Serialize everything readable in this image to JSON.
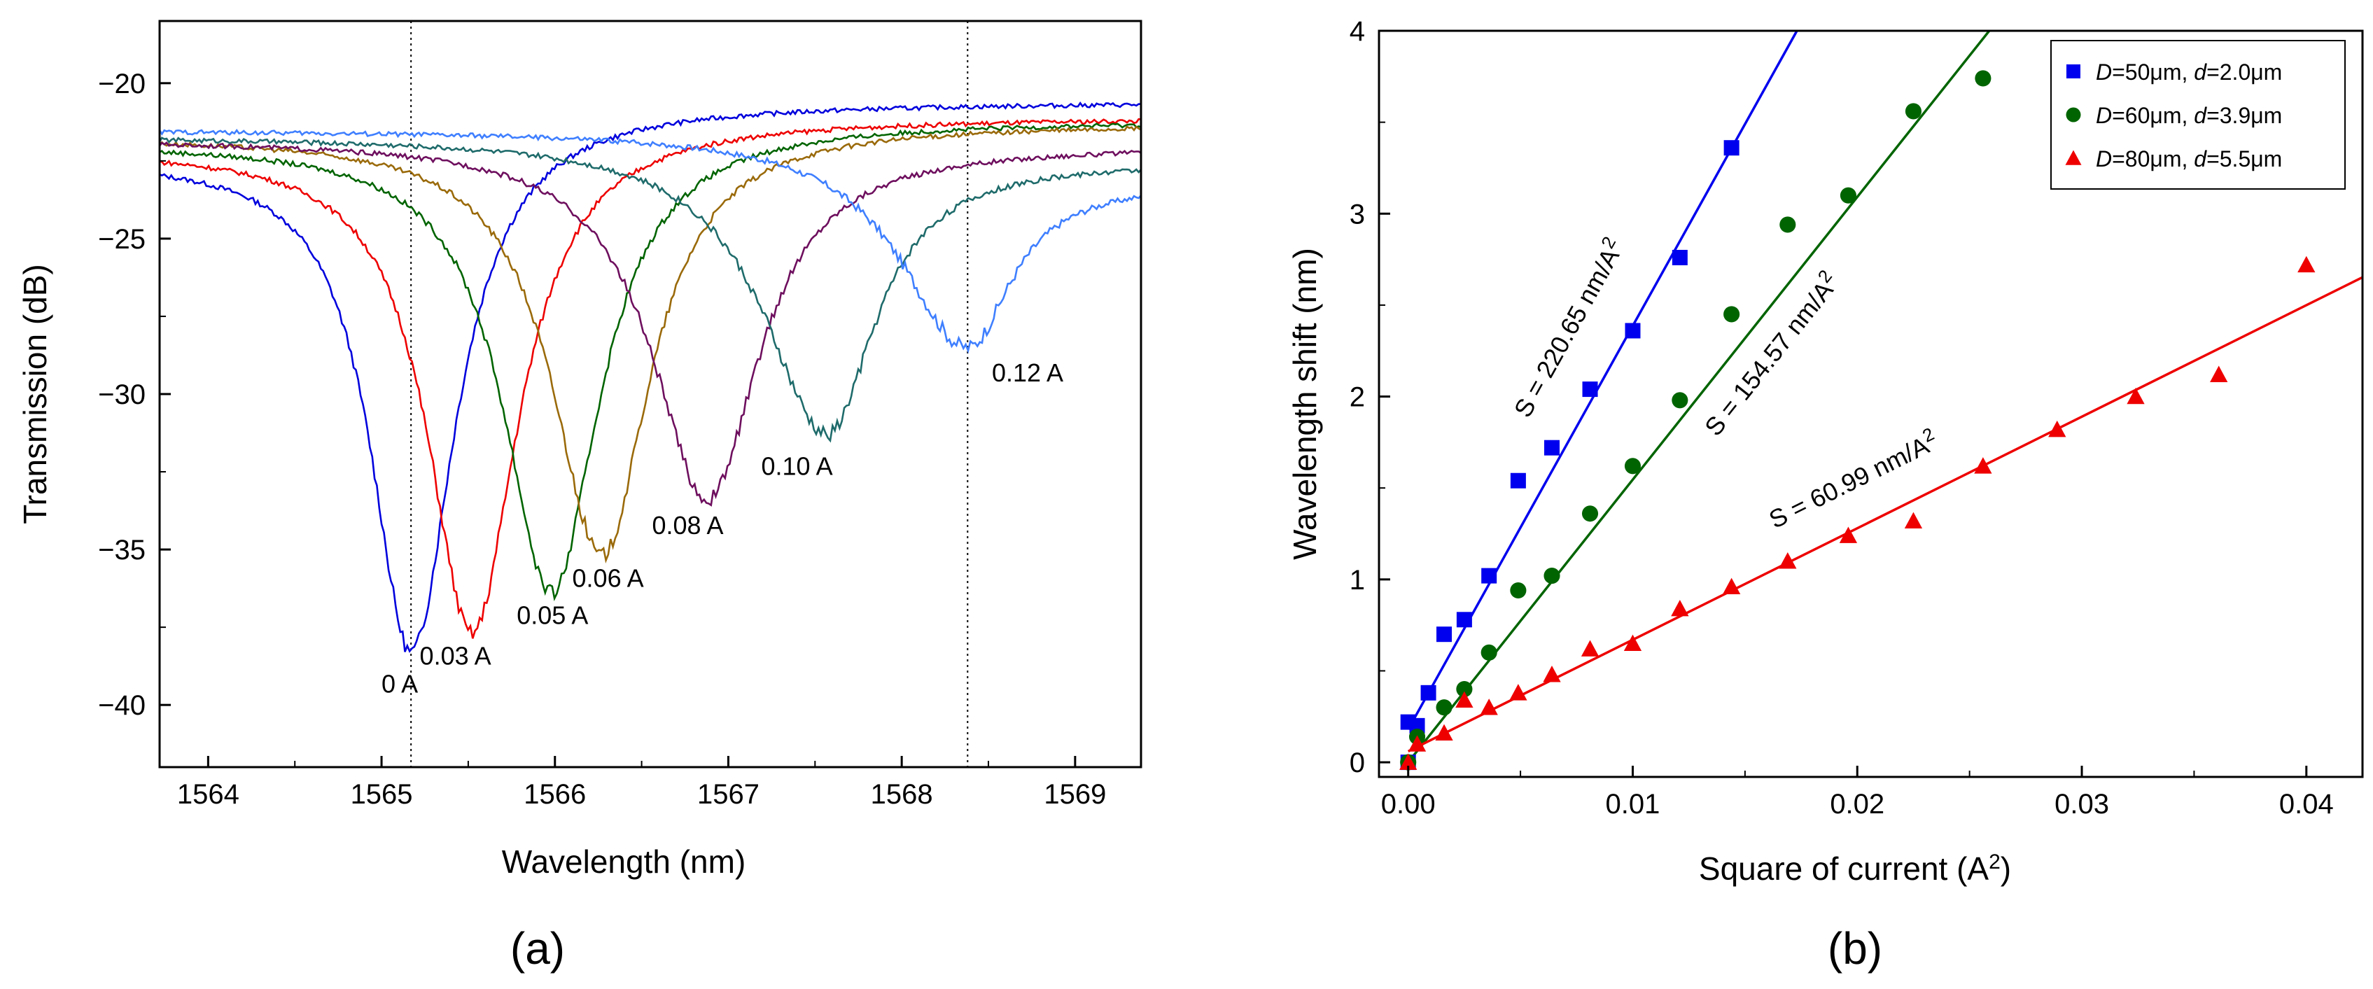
{
  "chart_data": [
    {
      "type": "line",
      "panel_label": "(a)",
      "xlabel": "Wavelength (nm)",
      "ylabel": "Transmission (dB)",
      "xlim": [
        1563.72,
        1569.38
      ],
      "ylim": [
        -42,
        -18
      ],
      "x_ticks": [
        "1564",
        "1565",
        "1566",
        "1567",
        "1568",
        "1569"
      ],
      "y_ticks": [
        "−20",
        "−25",
        "−30",
        "−35",
        "−40"
      ],
      "reference_lines_x": [
        1565.17,
        1568.38
      ],
      "series": [
        {
          "name": "0 A",
          "color": "#0000dd",
          "min_x": 1565.17,
          "min_y": -38.3,
          "start_y": -22.4,
          "end_y": -20.6,
          "width_left": 0.5,
          "width_right": 0.55
        },
        {
          "name": "0.03 A",
          "color": "#ee0000",
          "min_x": 1565.52,
          "min_y": -37.7,
          "start_y": -22.1,
          "end_y": -21.1,
          "width_left": 0.55,
          "width_right": 0.58
        },
        {
          "name": "0.05 A",
          "color": "#006400",
          "min_x": 1565.98,
          "min_y": -36.4,
          "start_y": -21.9,
          "end_y": -21.2,
          "width_left": 0.6,
          "width_right": 0.6
        },
        {
          "name": "0.06 A",
          "color": "#9a6a0a",
          "min_x": 1566.27,
          "min_y": -35.2,
          "start_y": -21.7,
          "end_y": -21.3,
          "width_left": 0.62,
          "width_right": 0.6
        },
        {
          "name": "0.08 A",
          "color": "#6e0f5e",
          "min_x": 1566.88,
          "min_y": -33.4,
          "start_y": -21.8,
          "end_y": -22.0,
          "width_left": 0.7,
          "width_right": 0.65
        },
        {
          "name": "0.10 A",
          "color": "#1f6b6b",
          "min_x": 1567.57,
          "min_y": -31.3,
          "start_y": -21.7,
          "end_y": -22.5,
          "width_left": 0.8,
          "width_right": 0.6
        },
        {
          "name": "0.12 A",
          "color": "#3f7fff",
          "min_x": 1568.38,
          "min_y": -28.5,
          "start_y": -21.5,
          "end_y": -23.2,
          "width_left": 0.85,
          "width_right": 0.55
        }
      ],
      "annotations": [
        {
          "text": "0 A",
          "x": 1565.0,
          "y": -39.6
        },
        {
          "text": "0.03 A",
          "x": 1565.22,
          "y": -38.7
        },
        {
          "text": "0.05 A",
          "x": 1565.78,
          "y": -37.4
        },
        {
          "text": "0.06 A",
          "x": 1566.1,
          "y": -36.2
        },
        {
          "text": "0.08 A",
          "x": 1566.56,
          "y": -34.5
        },
        {
          "text": "0.10 A",
          "x": 1567.19,
          "y": -32.6
        },
        {
          "text": "0.12 A",
          "x": 1568.52,
          "y": -29.6
        }
      ]
    },
    {
      "type": "scatter",
      "panel_label": "(b)",
      "xlabel": "Square of current (A",
      "xlabel_sup": "2",
      "xlabel_end": ")",
      "ylabel": "Wavelength shift (nm)",
      "xlim": [
        -0.0013,
        0.0425
      ],
      "ylim": [
        -0.08,
        4.0
      ],
      "x_ticks": [
        {
          "v": 0.0,
          "t": "0.00"
        },
        {
          "v": 0.01,
          "t": "0.01"
        },
        {
          "v": 0.02,
          "t": "0.02"
        },
        {
          "v": 0.03,
          "t": "0.03"
        },
        {
          "v": 0.04,
          "t": "0.04"
        }
      ],
      "y_ticks": [
        {
          "v": 0,
          "t": "0"
        },
        {
          "v": 1,
          "t": "1"
        },
        {
          "v": 2,
          "t": "2"
        },
        {
          "v": 3,
          "t": "3"
        },
        {
          "v": 4,
          "t": "4"
        }
      ],
      "series": [
        {
          "name_parts": [
            "D",
            "=50μm, ",
            "d",
            "=2.0μm"
          ],
          "marker": "square",
          "color": "#0000ee",
          "slope": 220.65,
          "intercept": 0.18,
          "fit_label": "S = 220.65 nm/A",
          "label_pos": [
            0.0075,
            2.35
          ],
          "points": [
            [
              0.0,
              0.0
            ],
            [
              0.0,
              0.22
            ],
            [
              0.0004,
              0.2
            ],
            [
              0.0009,
              0.38
            ],
            [
              0.0016,
              0.7
            ],
            [
              0.0025,
              0.78
            ],
            [
              0.0036,
              1.02
            ],
            [
              0.0049,
              1.54
            ],
            [
              0.0064,
              1.72
            ],
            [
              0.0081,
              2.04
            ],
            [
              0.01,
              2.36
            ],
            [
              0.0121,
              2.76
            ],
            [
              0.0144,
              3.36
            ]
          ]
        },
        {
          "name_parts": [
            "D",
            "=60μm, ",
            "d",
            "=3.9μm"
          ],
          "marker": "circle",
          "color": "#006400",
          "slope": 154.57,
          "intercept": 0.0,
          "fit_label": "S = 154.57 nm/A",
          "label_pos": [
            0.0165,
            2.2
          ],
          "points": [
            [
              0.0,
              0.0
            ],
            [
              0.0004,
              0.14
            ],
            [
              0.0016,
              0.3
            ],
            [
              0.0025,
              0.4
            ],
            [
              0.0036,
              0.6
            ],
            [
              0.0049,
              0.94
            ],
            [
              0.0064,
              1.02
            ],
            [
              0.0081,
              1.36
            ],
            [
              0.01,
              1.62
            ],
            [
              0.0121,
              1.98
            ],
            [
              0.0144,
              2.45
            ],
            [
              0.0169,
              2.94
            ],
            [
              0.0196,
              3.1
            ],
            [
              0.0225,
              3.56
            ],
            [
              0.0256,
              3.74
            ]
          ]
        },
        {
          "name_parts": [
            "D",
            "=80μm, ",
            "d",
            "=5.5μm"
          ],
          "marker": "triangle",
          "color": "#ee0000",
          "slope": 60.99,
          "intercept": 0.06,
          "fit_label": "S = 60.99 nm/A",
          "label_pos": [
            0.02,
            1.5
          ],
          "points": [
            [
              0.0,
              0.0
            ],
            [
              0.0004,
              0.1
            ],
            [
              0.0016,
              0.16
            ],
            [
              0.0025,
              0.34
            ],
            [
              0.0036,
              0.3
            ],
            [
              0.0049,
              0.38
            ],
            [
              0.0064,
              0.48
            ],
            [
              0.0081,
              0.62
            ],
            [
              0.01,
              0.65
            ],
            [
              0.0121,
              0.84
            ],
            [
              0.0144,
              0.96
            ],
            [
              0.0169,
              1.1
            ],
            [
              0.0196,
              1.24
            ],
            [
              0.0225,
              1.32
            ],
            [
              0.0256,
              1.62
            ],
            [
              0.0289,
              1.82
            ],
            [
              0.0324,
              2.0
            ],
            [
              0.0361,
              2.12
            ],
            [
              0.04,
              2.72
            ]
          ]
        }
      ],
      "legend_position": "top-right"
    }
  ]
}
